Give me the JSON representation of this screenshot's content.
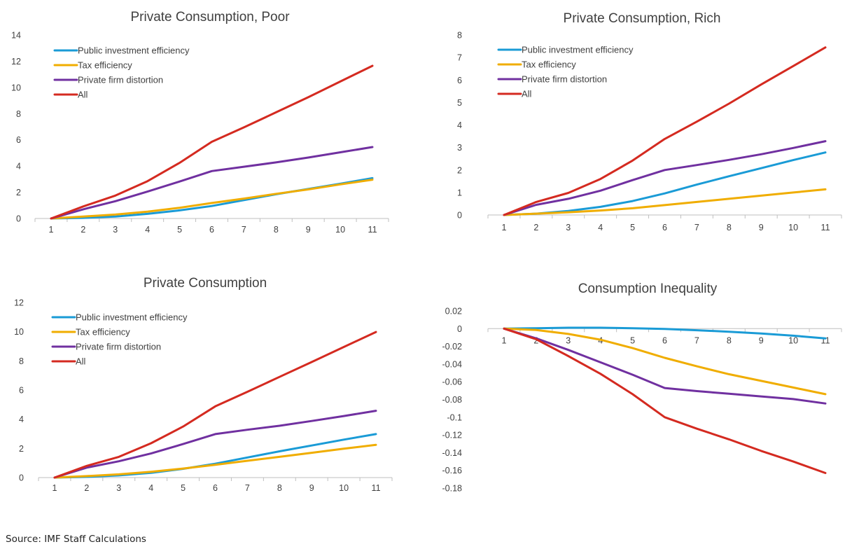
{
  "source_note": "Source: IMF Staff Calculations",
  "legend_labels": [
    "Public investment efficiency",
    "Tax efficiency",
    "Private firm distortion",
    "All"
  ],
  "colors": {
    "Public investment efficiency": "#1a9bd6",
    "Tax efficiency": "#f0ad00",
    "Private firm distortion": "#7030a0",
    "All": "#d42a20"
  },
  "chart_data": [
    {
      "type": "line",
      "title": "Private Consumption, Poor",
      "x": [
        1,
        2,
        3,
        4,
        5,
        6,
        7,
        8,
        9,
        10,
        11
      ],
      "yticks": [
        "0",
        "2",
        "4",
        "6",
        "8",
        "10",
        "12",
        "14"
      ],
      "ylim": [
        0,
        14
      ],
      "grid": false,
      "legend": "top-left",
      "series": [
        {
          "name": "Public investment efficiency",
          "values": [
            0,
            0.05,
            0.15,
            0.35,
            0.62,
            0.95,
            1.4,
            1.85,
            2.25,
            2.65,
            3.08
          ]
        },
        {
          "name": "Tax efficiency",
          "values": [
            0,
            0.15,
            0.3,
            0.52,
            0.82,
            1.18,
            1.52,
            1.88,
            2.22,
            2.6,
            2.96
          ]
        },
        {
          "name": "Private firm distortion",
          "values": [
            0,
            0.7,
            1.32,
            2.05,
            2.82,
            3.62,
            3.95,
            4.28,
            4.65,
            5.05,
            5.45
          ]
        },
        {
          "name": "All",
          "values": [
            0,
            0.92,
            1.75,
            2.85,
            4.25,
            5.85,
            6.95,
            8.1,
            9.25,
            10.45,
            11.65
          ]
        }
      ]
    },
    {
      "type": "line",
      "title": "Private Consumption, Rich",
      "x": [
        1,
        2,
        3,
        4,
        5,
        6,
        7,
        8,
        9,
        10,
        11
      ],
      "yticks": [
        "0",
        "1",
        "2",
        "3",
        "4",
        "5",
        "6",
        "7",
        "8"
      ],
      "ylim": [
        0,
        8
      ],
      "grid": false,
      "legend": "top-left",
      "series": [
        {
          "name": "Public investment efficiency",
          "values": [
            0,
            0.06,
            0.18,
            0.36,
            0.62,
            0.96,
            1.35,
            1.72,
            2.08,
            2.44,
            2.78
          ]
        },
        {
          "name": "Tax efficiency",
          "values": [
            0,
            0.06,
            0.12,
            0.2,
            0.3,
            0.44,
            0.58,
            0.72,
            0.86,
            1.0,
            1.14
          ]
        },
        {
          "name": "Private firm distortion",
          "values": [
            0,
            0.45,
            0.72,
            1.08,
            1.55,
            2.0,
            2.22,
            2.45,
            2.7,
            2.98,
            3.28
          ]
        },
        {
          "name": "All",
          "values": [
            0,
            0.58,
            0.98,
            1.6,
            2.42,
            3.38,
            4.15,
            4.95,
            5.8,
            6.62,
            7.45
          ]
        }
      ]
    },
    {
      "type": "line",
      "title": "Private Consumption",
      "x": [
        1,
        2,
        3,
        4,
        5,
        6,
        7,
        8,
        9,
        10,
        11
      ],
      "yticks": [
        "0",
        "2",
        "4",
        "6",
        "8",
        "10",
        "12"
      ],
      "ylim": [
        0,
        12
      ],
      "grid": false,
      "legend": "top-left",
      "series": [
        {
          "name": "Public investment efficiency",
          "values": [
            0,
            0.05,
            0.15,
            0.32,
            0.6,
            0.95,
            1.38,
            1.8,
            2.2,
            2.6,
            2.98
          ]
        },
        {
          "name": "Tax efficiency",
          "values": [
            0,
            0.1,
            0.22,
            0.4,
            0.62,
            0.88,
            1.15,
            1.42,
            1.7,
            1.98,
            2.24
          ]
        },
        {
          "name": "Private firm distortion",
          "values": [
            0,
            0.68,
            1.12,
            1.65,
            2.3,
            2.98,
            3.28,
            3.55,
            3.88,
            4.22,
            4.58
          ]
        },
        {
          "name": "All",
          "values": [
            0,
            0.8,
            1.42,
            2.35,
            3.5,
            4.88,
            5.88,
            6.9,
            7.92,
            8.95,
            9.98
          ]
        }
      ]
    },
    {
      "type": "line",
      "title": "Consumption Inequality",
      "x": [
        1,
        2,
        3,
        4,
        5,
        6,
        7,
        8,
        9,
        10,
        11
      ],
      "yticks": [
        "-0.18",
        "-0.16",
        "-0.14",
        "-0.12",
        "-0.1",
        "-0.08",
        "-0.06",
        "-0.04",
        "-0.02",
        "0",
        "0.02"
      ],
      "ylim": [
        -0.18,
        0.02
      ],
      "grid": false,
      "legend": "none",
      "series": [
        {
          "name": "Public investment efficiency",
          "values": [
            0,
            0.0005,
            0.001,
            0.001,
            0.0005,
            -0.0003,
            -0.0018,
            -0.0035,
            -0.0055,
            -0.008,
            -0.011
          ]
        },
        {
          "name": "Tax efficiency",
          "values": [
            0,
            -0.0015,
            -0.006,
            -0.0125,
            -0.022,
            -0.033,
            -0.0425,
            -0.0515,
            -0.059,
            -0.0665,
            -0.074
          ]
        },
        {
          "name": "Private firm distortion",
          "values": [
            0,
            -0.011,
            -0.024,
            -0.038,
            -0.052,
            -0.067,
            -0.0705,
            -0.0735,
            -0.0765,
            -0.0795,
            -0.0845
          ]
        },
        {
          "name": "All",
          "values": [
            0,
            -0.012,
            -0.031,
            -0.051,
            -0.074,
            -0.1,
            -0.113,
            -0.125,
            -0.138,
            -0.15,
            -0.163
          ]
        }
      ]
    }
  ]
}
